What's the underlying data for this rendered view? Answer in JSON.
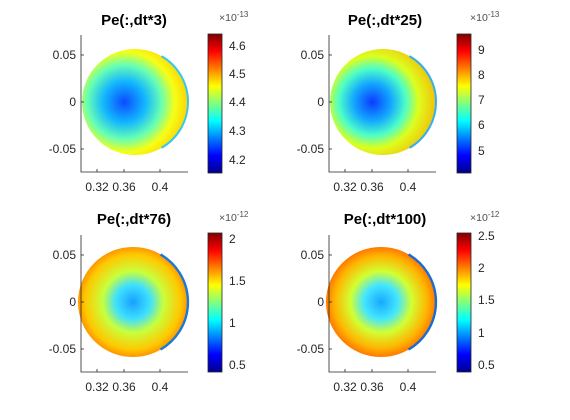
{
  "chart_data": [
    {
      "type": "heatmap",
      "title": "Pe(:,dt*3)",
      "x_ticks": [
        "0.32",
        "0.36",
        "0.4"
      ],
      "x_tick_values": [
        0.32,
        0.36,
        0.4
      ],
      "y_ticks": [
        "0.05",
        "0",
        "-0.05"
      ],
      "y_tick_values": [
        0.05,
        0,
        -0.05
      ],
      "xlim": [
        0.302,
        0.428
      ],
      "ylim": [
        -0.078,
        0.078
      ],
      "colorbar": {
        "exponent_base": "×10",
        "exponent": "-13",
        "ticks": [
          "4.6",
          "4.5",
          "4.4",
          "4.3",
          "4.2"
        ],
        "tick_values": [
          4.6,
          4.5,
          4.4,
          4.3,
          4.2
        ],
        "range": [
          4.16,
          4.64
        ]
      },
      "colormap": "jet",
      "pattern": {
        "center": [
          0.36,
          0.0
        ],
        "radius": 0.059,
        "profile": "center-low, rim-high, thin low edge ring on right"
      }
    },
    {
      "type": "heatmap",
      "title": "Pe(:,dt*25)",
      "x_ticks": [
        "0.32",
        "0.36",
        "0.4"
      ],
      "x_tick_values": [
        0.32,
        0.36,
        0.4
      ],
      "y_ticks": [
        "0.05",
        "0",
        "-0.05"
      ],
      "y_tick_values": [
        0.05,
        0,
        -0.05
      ],
      "xlim": [
        0.302,
        0.428
      ],
      "ylim": [
        -0.078,
        0.078
      ],
      "colorbar": {
        "exponent_base": "×10",
        "exponent": "-13",
        "ticks": [
          "9",
          "8",
          "7",
          "6",
          "5"
        ],
        "tick_values": [
          9,
          8,
          7,
          6,
          5
        ],
        "range": [
          4.2,
          9.8
        ]
      },
      "colormap": "jet",
      "pattern": {
        "center": [
          0.36,
          0.0
        ],
        "radius": 0.059,
        "profile": "center-low, rim-high, thin low edge ring on right"
      }
    },
    {
      "type": "heatmap",
      "title": "Pe(:,dt*76)",
      "x_ticks": [
        "0.32",
        "0.36",
        "0.4"
      ],
      "x_tick_values": [
        0.32,
        0.36,
        0.4
      ],
      "y_ticks": [
        "0.05",
        "0",
        "-0.05"
      ],
      "y_tick_values": [
        0.05,
        0,
        -0.05
      ],
      "xlim": [
        0.302,
        0.428
      ],
      "ylim": [
        -0.078,
        0.078
      ],
      "colorbar": {
        "exponent_base": "×10",
        "exponent": "-12",
        "ticks": [
          "2",
          "1.5",
          "1",
          "0.5"
        ],
        "tick_values": [
          2,
          1.5,
          1,
          0.5
        ],
        "range": [
          0.4,
          2.05
        ]
      },
      "colormap": "jet",
      "pattern": {
        "center": [
          0.36,
          0.0
        ],
        "radius": 0.059,
        "profile": "center-low, rim-high, thin low edge ring on right"
      }
    },
    {
      "type": "heatmap",
      "title": "Pe(:,dt*100)",
      "x_ticks": [
        "0.32",
        "0.36",
        "0.4"
      ],
      "x_tick_values": [
        0.32,
        0.36,
        0.4
      ],
      "y_ticks": [
        "0.05",
        "0",
        "-0.05"
      ],
      "y_tick_values": [
        0.05,
        0,
        -0.05
      ],
      "xlim": [
        0.302,
        0.428
      ],
      "ylim": [
        -0.078,
        0.078
      ],
      "colorbar": {
        "exponent_base": "×10",
        "exponent": "-12",
        "ticks": [
          "2.5",
          "2",
          "1.5",
          "1",
          "0.5"
        ],
        "tick_values": [
          2.5,
          2,
          1.5,
          1,
          0.5
        ],
        "range": [
          0.42,
          2.52
        ]
      },
      "colormap": "jet",
      "pattern": {
        "center": [
          0.36,
          0.0
        ],
        "radius": 0.059,
        "profile": "center-low, rim-high, thin low edge ring on right"
      }
    }
  ]
}
